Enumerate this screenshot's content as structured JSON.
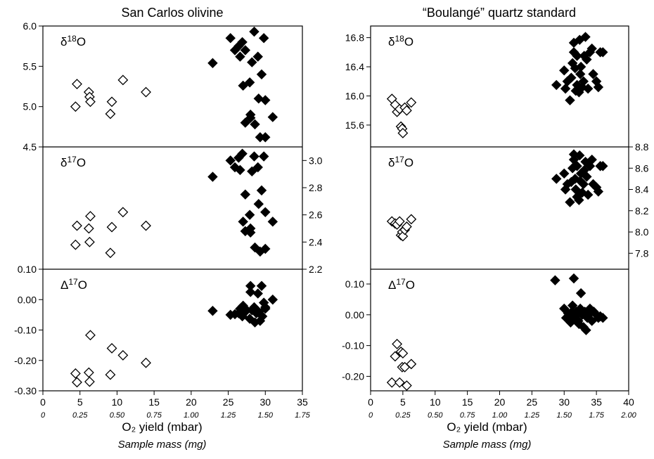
{
  "chart_data": [
    {
      "type": "scatter",
      "title": "San Carlos olivine",
      "xlabel": "O₂ yield (mbar)",
      "xlabel2": "Sample mass (mg)",
      "xlim": [
        0,
        35
      ],
      "xticks": [
        "0",
        "5",
        "10",
        "15",
        "20",
        "25",
        "30",
        "35"
      ],
      "x2ticks": [
        "0",
        "0.25",
        "0.50",
        "0.75",
        "1.00",
        "1.25",
        "1.50",
        "1.75"
      ],
      "series_legend": {
        "open": "open diamonds",
        "filled": "filled diamonds"
      },
      "panels": [
        {
          "label": "δ18O",
          "label_base": "δ",
          "label_sup": "18",
          "label_tail": "O",
          "axis": "left",
          "ylim": [
            4.5,
            6.0
          ],
          "yticks": [
            "4.5",
            "5.0",
            "5.5",
            "6.0"
          ],
          "open": [
            [
              4.4,
              5.0
            ],
            [
              4.6,
              5.28
            ],
            [
              6.2,
              5.18
            ],
            [
              6.3,
              5.12
            ],
            [
              6.4,
              5.06
            ],
            [
              9.1,
              4.91
            ],
            [
              9.3,
              5.06
            ],
            [
              10.8,
              5.33
            ],
            [
              13.9,
              5.18
            ]
          ],
          "filled": [
            [
              22.9,
              5.54
            ],
            [
              25.3,
              5.85
            ],
            [
              25.9,
              5.7
            ],
            [
              26.4,
              5.75
            ],
            [
              26.6,
              5.62
            ],
            [
              26.9,
              5.8
            ],
            [
              27.0,
              5.26
            ],
            [
              27.3,
              5.7
            ],
            [
              27.9,
              5.3
            ],
            [
              28.0,
              4.9
            ],
            [
              28.2,
              5.55
            ],
            [
              28.5,
              5.93
            ],
            [
              28.6,
              4.78
            ],
            [
              29.0,
              5.62
            ],
            [
              29.1,
              5.1
            ],
            [
              29.3,
              4.62
            ],
            [
              29.5,
              5.4
            ],
            [
              29.8,
              5.85
            ],
            [
              30.0,
              5.08
            ],
            [
              30.0,
              4.62
            ],
            [
              31.0,
              4.87
            ],
            [
              27.3,
              4.8
            ],
            [
              28.0,
              4.86
            ]
          ]
        },
        {
          "label": "δ17O",
          "label_base": "δ",
          "label_sup": "17",
          "label_tail": "O",
          "axis": "right",
          "ylim": [
            2.2,
            3.1
          ],
          "yticks": [
            "2.2",
            "2.4",
            "2.6",
            "2.8",
            "3.0"
          ],
          "open": [
            [
              4.4,
              2.38
            ],
            [
              4.6,
              2.52
            ],
            [
              6.2,
              2.5
            ],
            [
              6.3,
              2.4
            ],
            [
              6.4,
              2.59
            ],
            [
              9.1,
              2.32
            ],
            [
              9.3,
              2.51
            ],
            [
              10.8,
              2.62
            ],
            [
              13.9,
              2.52
            ]
          ],
          "filled": [
            [
              22.9,
              2.88
            ],
            [
              25.3,
              3.0
            ],
            [
              25.9,
              2.95
            ],
            [
              26.4,
              3.02
            ],
            [
              26.6,
              2.93
            ],
            [
              26.9,
              3.05
            ],
            [
              27.0,
              2.55
            ],
            [
              27.3,
              2.75
            ],
            [
              27.9,
              2.6
            ],
            [
              28.0,
              2.5
            ],
            [
              28.2,
              2.92
            ],
            [
              28.5,
              3.03
            ],
            [
              28.6,
              2.36
            ],
            [
              29.0,
              2.95
            ],
            [
              29.1,
              2.68
            ],
            [
              29.3,
              2.33
            ],
            [
              29.5,
              2.78
            ],
            [
              29.8,
              3.03
            ],
            [
              30.0,
              2.62
            ],
            [
              30.0,
              2.35
            ],
            [
              31.0,
              2.55
            ],
            [
              27.3,
              2.48
            ],
            [
              28.0,
              2.47
            ]
          ]
        },
        {
          "label": "Δ17O",
          "label_base": "Δ",
          "label_sup": "17",
          "label_tail": "O",
          "axis": "left",
          "ylim": [
            -0.3,
            0.1
          ],
          "yticks": [
            "-0.30",
            "-0.20",
            "-0.10",
            "0.00",
            "0.10"
          ],
          "open": [
            [
              4.4,
              -0.243
            ],
            [
              4.6,
              -0.272
            ],
            [
              6.2,
              -0.24
            ],
            [
              6.3,
              -0.27
            ],
            [
              6.4,
              -0.117
            ],
            [
              9.1,
              -0.247
            ],
            [
              9.3,
              -0.16
            ],
            [
              10.8,
              -0.183
            ],
            [
              13.9,
              -0.208
            ]
          ],
          "filled": [
            [
              22.9,
              -0.037
            ],
            [
              25.3,
              -0.05
            ],
            [
              25.9,
              -0.048
            ],
            [
              26.4,
              -0.045
            ],
            [
              26.6,
              -0.03
            ],
            [
              26.9,
              -0.055
            ],
            [
              27.0,
              -0.02
            ],
            [
              27.3,
              -0.03
            ],
            [
              27.9,
              -0.063
            ],
            [
              28.0,
              0.045
            ],
            [
              28.2,
              -0.035
            ],
            [
              28.5,
              -0.025
            ],
            [
              28.6,
              -0.075
            ],
            [
              29.0,
              0.02
            ],
            [
              29.1,
              -0.04
            ],
            [
              29.3,
              -0.07
            ],
            [
              29.5,
              0.045
            ],
            [
              29.8,
              -0.01
            ],
            [
              30.0,
              -0.025
            ],
            [
              30.0,
              -0.03
            ],
            [
              31.0,
              0.0
            ],
            [
              27.3,
              -0.04
            ],
            [
              28.0,
              0.025
            ],
            [
              28.8,
              -0.045
            ],
            [
              29.6,
              -0.055
            ]
          ]
        }
      ]
    },
    {
      "type": "scatter",
      "title": "“Boulangé” quartz standard",
      "xlabel": "O₂ yield (mbar)",
      "xlabel2": "Sample mass (mg)",
      "xlim": [
        0,
        40
      ],
      "xticks": [
        "0",
        "5",
        "10",
        "15",
        "20",
        "25",
        "30",
        "35",
        "40"
      ],
      "x2ticks": [
        "0",
        "0.25",
        "0.50",
        "0.75",
        "1.00",
        "1.25",
        "1.50",
        "1.75",
        "2.00"
      ],
      "panels": [
        {
          "label": "δ18O",
          "label_base": "δ",
          "label_sup": "18",
          "label_tail": "O",
          "axis": "left",
          "ylim": [
            15.3,
            16.96
          ],
          "yticks": [
            "15.6",
            "16.0",
            "16.4",
            "16.8"
          ],
          "open": [
            [
              3.3,
              15.96
            ],
            [
              3.8,
              15.88
            ],
            [
              4.1,
              15.78
            ],
            [
              4.5,
              15.82
            ],
            [
              4.7,
              15.58
            ],
            [
              4.9,
              15.55
            ],
            [
              5.0,
              15.49
            ],
            [
              5.3,
              15.84
            ],
            [
              5.6,
              15.8
            ],
            [
              6.3,
              15.91
            ]
          ],
          "filled": [
            [
              28.8,
              16.15
            ],
            [
              30.0,
              16.35
            ],
            [
              30.2,
              16.1
            ],
            [
              30.5,
              16.2
            ],
            [
              30.9,
              15.94
            ],
            [
              31.1,
              16.25
            ],
            [
              31.3,
              16.45
            ],
            [
              31.5,
              16.6
            ],
            [
              31.5,
              16.73
            ],
            [
              31.7,
              16.38
            ],
            [
              32.0,
              16.15
            ],
            [
              32.0,
              16.55
            ],
            [
              32.3,
              16.05
            ],
            [
              32.4,
              16.77
            ],
            [
              32.5,
              16.3
            ],
            [
              32.8,
              16.12
            ],
            [
              33.0,
              16.2
            ],
            [
              33.1,
              16.55
            ],
            [
              33.3,
              16.81
            ],
            [
              33.5,
              16.5
            ],
            [
              33.7,
              16.1
            ],
            [
              34.0,
              16.6
            ],
            [
              34.3,
              16.65
            ],
            [
              34.5,
              16.3
            ],
            [
              35.0,
              16.2
            ],
            [
              35.3,
              16.12
            ],
            [
              35.6,
              16.6
            ],
            [
              36.0,
              16.6
            ],
            [
              31.8,
              16.07
            ],
            [
              32.6,
              16.4
            ]
          ]
        },
        {
          "label": "δ17O",
          "label_base": "δ",
          "label_sup": "17",
          "label_tail": "O",
          "axis": "right",
          "ylim": [
            7.65,
            8.8
          ],
          "yticks": [
            "7.8",
            "8.0",
            "8.2",
            "8.4",
            "8.6",
            "8.8"
          ],
          "open": [
            [
              3.3,
              8.1
            ],
            [
              3.8,
              8.08
            ],
            [
              4.1,
              8.07
            ],
            [
              4.5,
              8.1
            ],
            [
              4.7,
              7.97
            ],
            [
              4.9,
              8.0
            ],
            [
              5.0,
              7.96
            ],
            [
              5.3,
              8.02
            ],
            [
              5.6,
              8.05
            ],
            [
              6.3,
              8.12
            ]
          ],
          "filled": [
            [
              28.8,
              8.5
            ],
            [
              30.0,
              8.55
            ],
            [
              30.2,
              8.4
            ],
            [
              30.5,
              8.45
            ],
            [
              30.9,
              8.28
            ],
            [
              31.1,
              8.47
            ],
            [
              31.3,
              8.6
            ],
            [
              31.5,
              8.68
            ],
            [
              31.5,
              8.73
            ],
            [
              31.7,
              8.5
            ],
            [
              32.0,
              8.33
            ],
            [
              32.0,
              8.62
            ],
            [
              32.3,
              8.3
            ],
            [
              32.4,
              8.72
            ],
            [
              32.5,
              8.48
            ],
            [
              32.8,
              8.37
            ],
            [
              33.0,
              8.45
            ],
            [
              33.1,
              8.58
            ],
            [
              33.3,
              8.66
            ],
            [
              33.5,
              8.52
            ],
            [
              33.7,
              8.35
            ],
            [
              34.0,
              8.62
            ],
            [
              34.3,
              8.68
            ],
            [
              34.5,
              8.45
            ],
            [
              35.0,
              8.42
            ],
            [
              35.3,
              8.38
            ],
            [
              35.6,
              8.62
            ],
            [
              36.0,
              8.62
            ],
            [
              31.8,
              8.4
            ],
            [
              32.6,
              8.55
            ]
          ]
        },
        {
          "label": "Δ17O",
          "label_base": "Δ",
          "label_sup": "17",
          "label_tail": "O",
          "axis": "left",
          "ylim": [
            -0.247,
            0.148
          ],
          "yticks": [
            "-0.20",
            "-0.10",
            "0.00",
            "0.10"
          ],
          "open": [
            [
              3.3,
              -0.22
            ],
            [
              3.8,
              -0.135
            ],
            [
              4.1,
              -0.095
            ],
            [
              4.5,
              -0.22
            ],
            [
              4.7,
              -0.12
            ],
            [
              4.9,
              -0.17
            ],
            [
              5.0,
              -0.125
            ],
            [
              5.3,
              -0.17
            ],
            [
              5.6,
              -0.23
            ],
            [
              6.3,
              -0.16
            ]
          ],
          "filled": [
            [
              28.6,
              0.112
            ],
            [
              30.0,
              0.02
            ],
            [
              30.3,
              -0.01
            ],
            [
              30.6,
              0.005
            ],
            [
              30.9,
              0.0
            ],
            [
              31.0,
              -0.025
            ],
            [
              31.3,
              0.03
            ],
            [
              31.5,
              0.118
            ],
            [
              31.7,
              -0.015
            ],
            [
              31.9,
              0.01
            ],
            [
              32.0,
              0.0
            ],
            [
              32.3,
              -0.03
            ],
            [
              32.5,
              0.02
            ],
            [
              32.6,
              0.07
            ],
            [
              32.8,
              0.0
            ],
            [
              33.0,
              -0.04
            ],
            [
              33.2,
              0.01
            ],
            [
              33.4,
              -0.05
            ],
            [
              33.6,
              -0.01
            ],
            [
              34.0,
              0.02
            ],
            [
              34.3,
              -0.02
            ],
            [
              34.6,
              0.01
            ],
            [
              35.0,
              0.0
            ],
            [
              35.3,
              -0.01
            ],
            [
              35.6,
              -0.005
            ],
            [
              36.0,
              -0.01
            ],
            [
              31.2,
              0.01
            ],
            [
              32.2,
              -0.02
            ],
            [
              33.8,
              0.0
            ]
          ]
        }
      ]
    }
  ]
}
